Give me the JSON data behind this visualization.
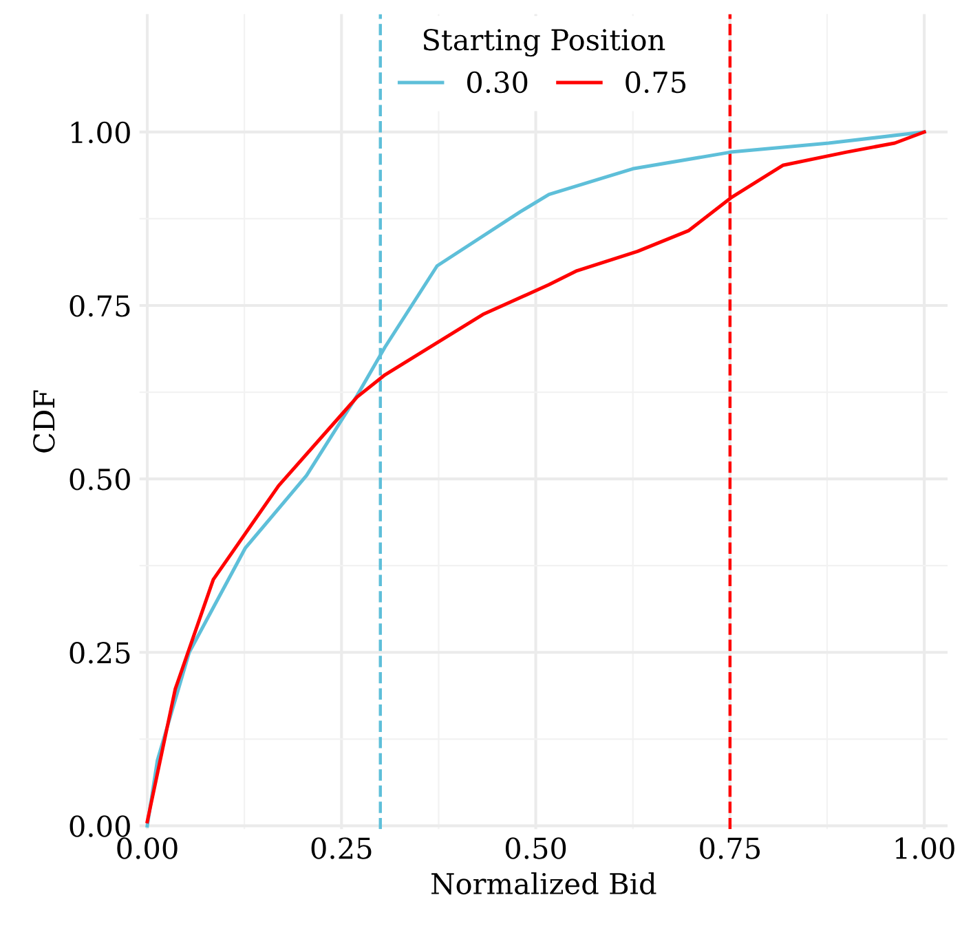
{
  "chart_data": {
    "type": "line",
    "xlabel": "Normalized Bid",
    "ylabel": "CDF",
    "legend_title": "Starting Position",
    "legend": "top",
    "grid": true,
    "line_style": "solid",
    "marker": "none",
    "xlim": [
      -0.01,
      1.03
    ],
    "ylim": [
      -0.005,
      1.17
    ],
    "xticks": [
      {
        "value": 0,
        "label": "0.00"
      },
      {
        "value": 0.25,
        "label": "0.25"
      },
      {
        "value": 0.5,
        "label": "0.50"
      },
      {
        "value": 0.75,
        "label": "0.75"
      },
      {
        "value": 1,
        "label": "1.00"
      }
    ],
    "yticks": [
      {
        "value": 0,
        "label": "0.00"
      },
      {
        "value": 0.25,
        "label": "0.25"
      },
      {
        "value": 0.5,
        "label": "0.50"
      },
      {
        "value": 0.75,
        "label": "0.75"
      },
      {
        "value": 1,
        "label": "1.00"
      }
    ],
    "series": [
      {
        "name": "0.30",
        "color": "#5ebfd9",
        "x": [
          0,
          0.013,
          0.054,
          0.126,
          0.205,
          0.27,
          0.306,
          0.373,
          0.48,
          0.517,
          0.625,
          0.751,
          0.877,
          1.0
        ],
        "values": [
          0,
          0.094,
          0.25,
          0.4,
          0.505,
          0.62,
          0.69,
          0.807,
          0.885,
          0.91,
          0.947,
          0.971,
          0.984,
          1.0
        ]
      },
      {
        "name": "0.75",
        "color": "#ff0000",
        "x": [
          0,
          0.036,
          0.085,
          0.169,
          0.27,
          0.306,
          0.432,
          0.517,
          0.553,
          0.631,
          0.697,
          0.751,
          0.818,
          0.9,
          0.962,
          1.0
        ],
        "values": [
          0.006,
          0.197,
          0.355,
          0.49,
          0.618,
          0.65,
          0.737,
          0.78,
          0.8,
          0.828,
          0.858,
          0.905,
          0.952,
          0.971,
          0.984,
          1.0
        ]
      }
    ],
    "ref_lines": [
      {
        "axis": "x",
        "value": 0.3,
        "label": null,
        "color": "#5ebfd9",
        "line_style": "dashed"
      },
      {
        "axis": "x",
        "value": 0.75,
        "label": null,
        "color": "#ff0000",
        "line_style": "dashed"
      }
    ]
  }
}
